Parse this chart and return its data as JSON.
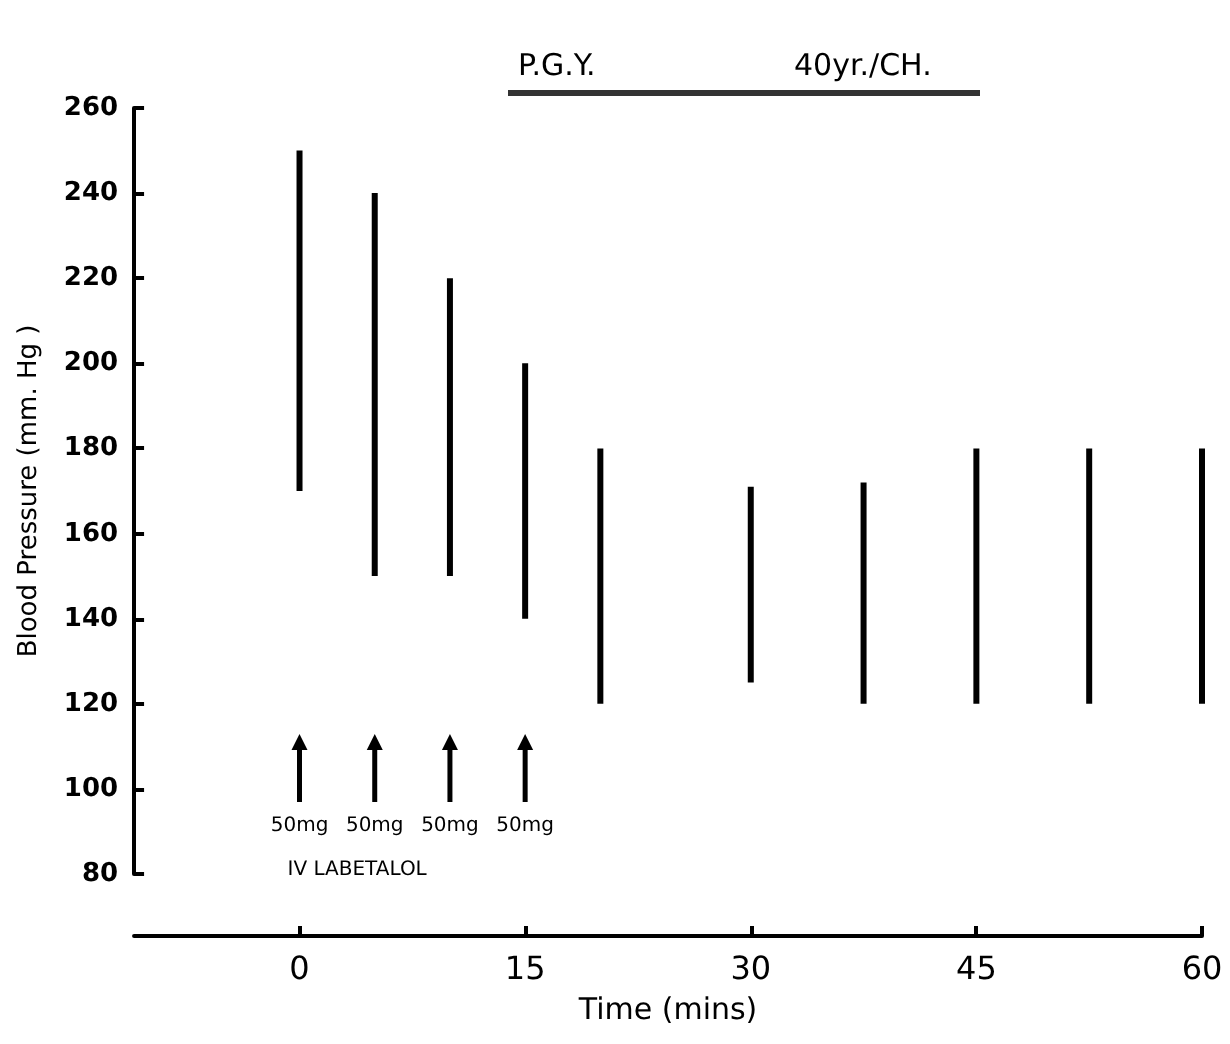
{
  "chart_data": {
    "type": "bar",
    "title": "P.G.Y.",
    "subtitle": "40yr./CH.",
    "xlabel": "Time (mins)",
    "ylabel": "Blood Pressure (mm. Hg )",
    "x": [
      0,
      5,
      10,
      15,
      20,
      30,
      37.5,
      45,
      52.5,
      60
    ],
    "base": [
      170,
      150,
      150,
      140,
      120,
      125,
      120,
      120,
      120,
      120
    ],
    "values": [
      80,
      90,
      70,
      60,
      60,
      46,
      52,
      60,
      60,
      60
    ],
    "color": "#000000",
    "xlim": [
      -11,
      60
    ],
    "xticks": [
      0,
      15,
      30,
      45,
      60
    ],
    "ylim": [
      80,
      260
    ],
    "yticks": [
      80,
      100,
      120,
      140,
      160,
      180,
      200,
      220,
      240,
      260
    ],
    "grid": false,
    "annotations": [
      "50mg",
      "50mg",
      "50mg",
      "50mg",
      "IV LABETALOL"
    ]
  }
}
